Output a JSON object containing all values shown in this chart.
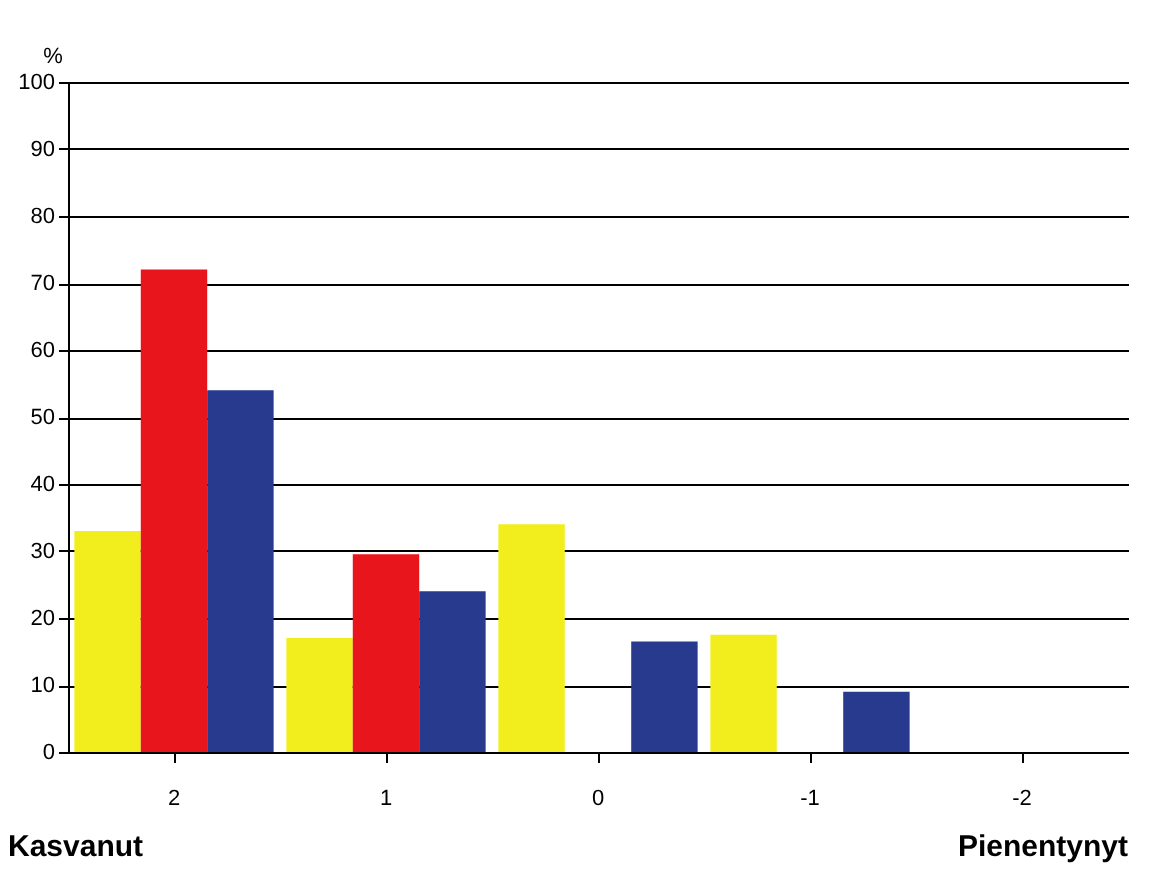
{
  "chart_data": {
    "type": "bar",
    "ylabel": "%",
    "categories": [
      "2",
      "1",
      "0",
      "-1",
      "-2"
    ],
    "series": [
      {
        "color": "#f2ee1e",
        "values": [
          33,
          17,
          34,
          17.5,
          0
        ]
      },
      {
        "color": "#e8161c",
        "values": [
          72,
          29.5,
          0,
          0,
          0
        ]
      },
      {
        "color": "#283a8e",
        "values": [
          54,
          24,
          16.5,
          9,
          0
        ]
      }
    ],
    "ylim": [
      0,
      100
    ],
    "yticks": [
      0,
      10,
      20,
      30,
      40,
      50,
      60,
      70,
      80,
      90,
      100
    ],
    "grid": "y",
    "annotations": [
      "Kasvanut",
      "Pienentynyt"
    ]
  }
}
